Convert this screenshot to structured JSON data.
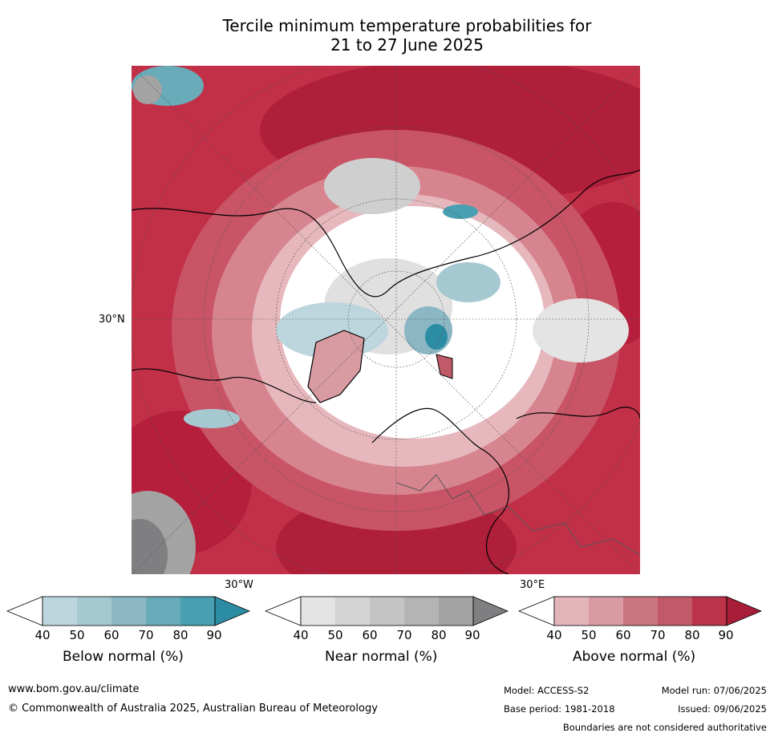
{
  "title_line1": "Tercile minimum temperature probabilities for",
  "title_line2": "21 to 27 June 2025",
  "map": {
    "lat_label": "30°N",
    "lon_label_west": "30°W",
    "lon_label_east": "30°E"
  },
  "legends": [
    {
      "title": "Below normal (%)",
      "ticks": [
        "40",
        "50",
        "60",
        "70",
        "80",
        "90"
      ],
      "colors": [
        "#ffffff",
        "#bdd6dd",
        "#a6c9d1",
        "#8bb7c4",
        "#69abb8",
        "#479fb1",
        "#2b8ca3"
      ]
    },
    {
      "title": "Near normal (%)",
      "ticks": [
        "40",
        "50",
        "60",
        "70",
        "80",
        "90"
      ],
      "colors": [
        "#ffffff",
        "#e4e4e4",
        "#d4d4d4",
        "#c4c4c4",
        "#b4b4b5",
        "#a3a3a3",
        "#7f7e80"
      ]
    },
    {
      "title": "Above normal (%)",
      "ticks": [
        "40",
        "50",
        "60",
        "70",
        "80",
        "90"
      ],
      "colors": [
        "#ffffff",
        "#e3b5bb",
        "#d89ba2",
        "#cb7580",
        "#c05a68",
        "#ba3349",
        "#a81d38"
      ]
    }
  ],
  "footer": {
    "url": "www.bom.gov.au/climate",
    "copyright": "© Commonwealth of Australia 2025, Australian Bureau of Meteorology",
    "model": "Model: ACCESS-S2",
    "base_period": "Base period: 1981-2018",
    "model_run": "Model run: 07/06/2025",
    "issued": "Issued: 09/06/2025",
    "disclaimer": "Boundaries are not considered authoritative"
  }
}
